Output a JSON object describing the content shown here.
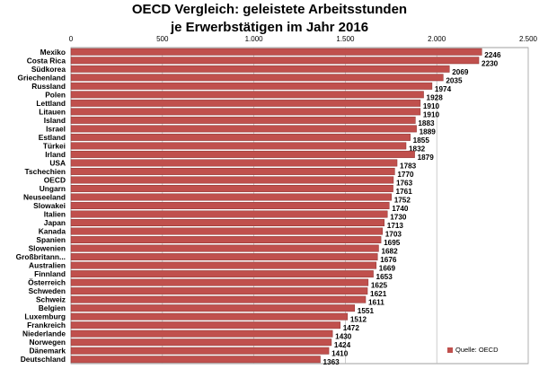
{
  "title_line1": "OECD Vergleich: geleistete Arbeitsstunden",
  "title_line2": "je Erwerbstätigen im Jahr 2016",
  "legend_label": "Quelle: OECD",
  "bar_color": "#c0504d",
  "chart_data": {
    "type": "bar",
    "orientation": "horizontal",
    "title": "OECD Vergleich: geleistete Arbeitsstunden je Erwerbstätigen im Jahr 2016",
    "xlim": [
      0,
      2500
    ],
    "ticks": [
      0,
      500,
      1000,
      1500,
      2000,
      2500
    ],
    "tick_labels": [
      "0",
      "500",
      "1.000",
      "1.500",
      "2.000",
      "2.500"
    ],
    "grid": true,
    "legend_position": "bottom-right",
    "categories": [
      "Mexiko",
      "Costa Rica",
      "Südkorea",
      "Griechenland",
      "Russland",
      "Polen",
      "Lettland",
      "Litauen",
      "Island",
      "Israel",
      "Estland",
      "Türkei",
      "Irland",
      "USA",
      "Tschechien",
      "OECD",
      "Ungarn",
      "Neuseeland",
      "Slowakei",
      "Italien",
      "Japan",
      "Kanada",
      "Spanien",
      "Slowenien",
      "Großbritann...",
      "Australien",
      "Finnland",
      "Österreich",
      "Schweden",
      "Schweiz",
      "Belgien",
      "Luxemburg",
      "Frankreich",
      "Niederlande",
      "Norwegen",
      "Dänemark",
      "Deutschland"
    ],
    "values": [
      2246,
      2230,
      2069,
      2035,
      1974,
      1928,
      1910,
      1910,
      1883,
      1889,
      1855,
      1832,
      1879,
      1783,
      1770,
      1763,
      1761,
      1752,
      1740,
      1730,
      1713,
      1703,
      1695,
      1682,
      1676,
      1669,
      1653,
      1625,
      1621,
      1611,
      1551,
      1512,
      1472,
      1430,
      1424,
      1410,
      1363
    ],
    "value_labels": [
      "2246",
      "2230",
      "2069",
      "2035",
      "1974",
      "1928",
      "1910",
      "1910",
      "1883",
      "1889",
      "1855",
      "1832",
      "1879",
      "1783",
      "1770",
      "1763",
      "1761",
      "1752",
      "1740",
      "1730",
      "1713",
      "1703",
      "1695",
      "1682",
      "1676",
      "1669",
      "1653",
      "1625",
      "1621",
      "1611",
      "1551",
      "1512",
      "1472",
      "1430",
      "1424",
      "1410",
      "1363"
    ],
    "series": [
      {
        "name": "Quelle: OECD"
      }
    ]
  }
}
